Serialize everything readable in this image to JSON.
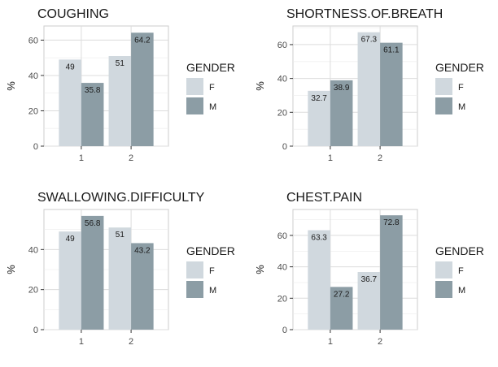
{
  "palette": {
    "F": "#d0d8de",
    "M": "#8c9da5",
    "panel_bg": "#ffffff",
    "grid": "#dcdcdc",
    "border": "#cccccc"
  },
  "chart_data": [
    {
      "type": "bar",
      "title": "COUGHING",
      "ylabel": "%",
      "xlabel": "",
      "categories": [
        "1",
        "2"
      ],
      "ylim": [
        0,
        68
      ],
      "yticks": [
        0,
        20,
        40,
        60
      ],
      "grid": true,
      "legend": {
        "title": "GENDER",
        "position": "right"
      },
      "series": [
        {
          "name": "F",
          "values": [
            49,
            51
          ],
          "labels": [
            "49",
            "51"
          ]
        },
        {
          "name": "M",
          "values": [
            35.8,
            64.2
          ],
          "labels": [
            "35.8",
            "64.2"
          ]
        }
      ]
    },
    {
      "type": "bar",
      "title": "SHORTNESS.OF.BREATH",
      "ylabel": "%",
      "xlabel": "",
      "categories": [
        "1",
        "2"
      ],
      "ylim": [
        0,
        71
      ],
      "yticks": [
        0,
        20,
        40,
        60
      ],
      "grid": true,
      "legend": {
        "title": "GENDER",
        "position": "right"
      },
      "series": [
        {
          "name": "F",
          "values": [
            32.7,
            67.3
          ],
          "labels": [
            "32.7",
            "67.3"
          ]
        },
        {
          "name": "M",
          "values": [
            38.9,
            61.1
          ],
          "labels": [
            "38.9",
            "61.1"
          ]
        }
      ]
    },
    {
      "type": "bar",
      "title": "SWALLOWING.DIFFICULTY",
      "ylabel": "%",
      "xlabel": "",
      "categories": [
        "1",
        "2"
      ],
      "ylim": [
        0,
        60
      ],
      "yticks": [
        0,
        20,
        40
      ],
      "grid": true,
      "legend": {
        "title": "GENDER",
        "position": "right"
      },
      "series": [
        {
          "name": "F",
          "values": [
            49,
            51
          ],
          "labels": [
            "49",
            "51"
          ]
        },
        {
          "name": "M",
          "values": [
            56.8,
            43.2
          ],
          "labels": [
            "56.8",
            "43.2"
          ]
        }
      ]
    },
    {
      "type": "bar",
      "title": "CHEST.PAIN",
      "ylabel": "%",
      "xlabel": "",
      "categories": [
        "1",
        "2"
      ],
      "ylim": [
        0,
        76.5
      ],
      "yticks": [
        0,
        20,
        40,
        60
      ],
      "grid": true,
      "legend": {
        "title": "GENDER",
        "position": "right"
      },
      "series": [
        {
          "name": "F",
          "values": [
            63.3,
            36.7
          ],
          "labels": [
            "63.3",
            "36.7"
          ]
        },
        {
          "name": "M",
          "values": [
            27.2,
            72.8
          ],
          "labels": [
            "27.2",
            "72.8"
          ]
        }
      ]
    }
  ]
}
